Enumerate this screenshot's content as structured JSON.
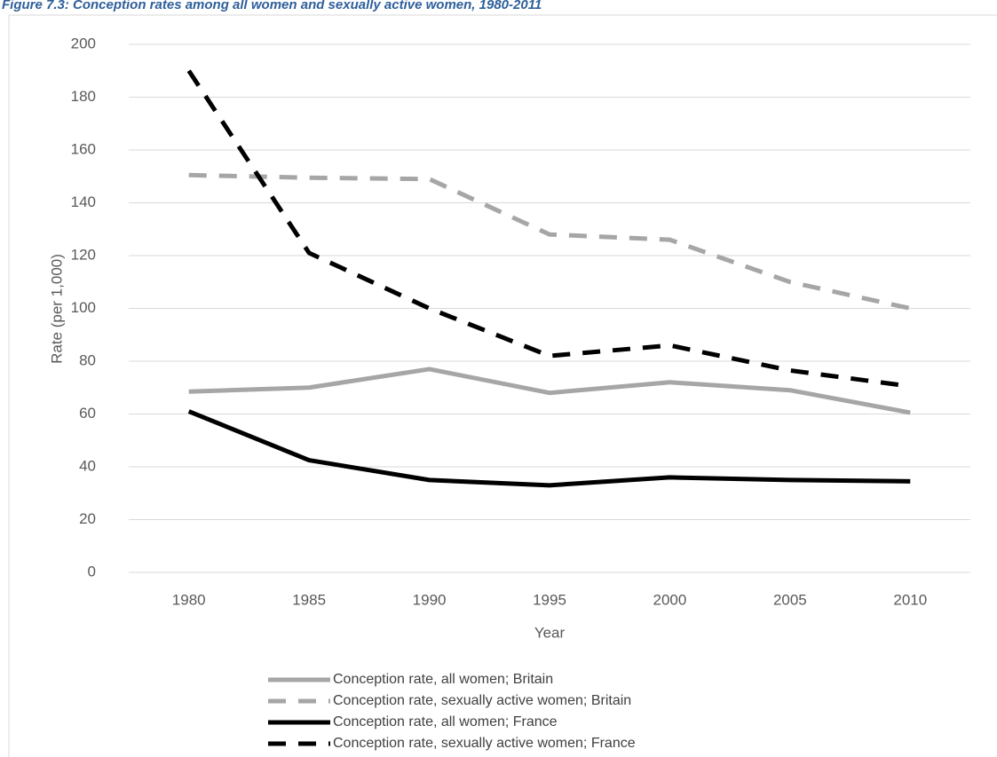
{
  "chart_data": {
    "type": "line",
    "title": "Figure 7.3: Conception rates among all women and sexually active women, 1980-2011",
    "x_label": "Year",
    "y_label": "Rate (per 1,000)",
    "categories": [
      "1980",
      "1985",
      "1990",
      "1995",
      "2000",
      "2005",
      "2010"
    ],
    "series": [
      {
        "name": "Conception rate, all women; Britain",
        "color": "#a6a6a6",
        "dashed": false,
        "values": [
          68.5,
          70,
          77,
          68,
          72,
          69,
          60.5
        ]
      },
      {
        "name": "Conception rate, sexually active women; Britain",
        "color": "#a6a6a6",
        "dashed": true,
        "values": [
          150.5,
          149.5,
          149,
          128,
          126,
          110,
          100
        ]
      },
      {
        "name": "Conception rate, all women; France",
        "color": "#000000",
        "dashed": false,
        "values": [
          61,
          42.5,
          35,
          33,
          36,
          35,
          34.5
        ]
      },
      {
        "name": "Conception rate, sexually active women; France",
        "color": "#000000",
        "dashed": true,
        "values": [
          190,
          121,
          100,
          82,
          86,
          76.5,
          70.5
        ]
      }
    ],
    "ylim": [
      0,
      200
    ],
    "yticks": [
      0,
      20,
      40,
      60,
      80,
      100,
      120,
      140,
      160,
      180,
      200
    ],
    "grid": true,
    "legend": "bottom"
  }
}
